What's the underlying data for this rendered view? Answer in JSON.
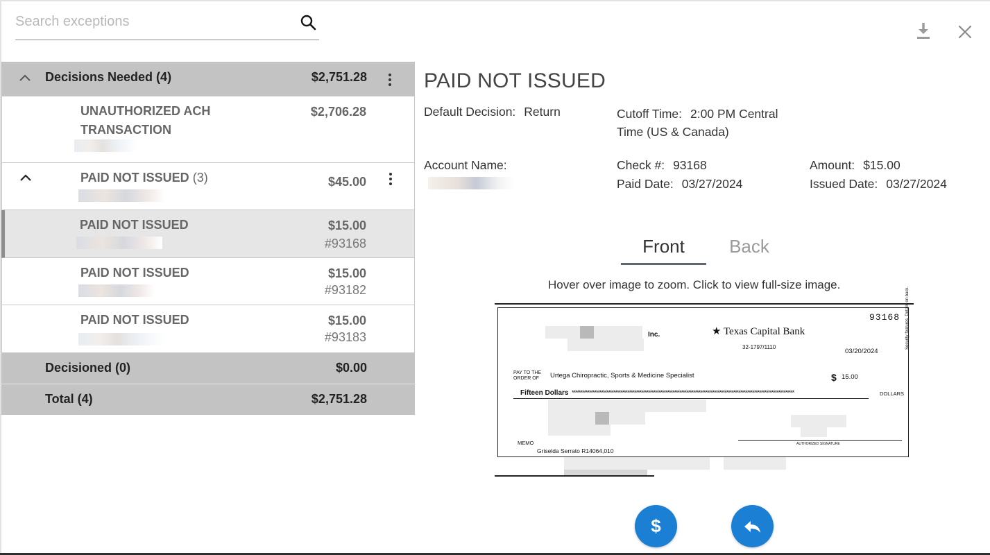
{
  "search": {
    "placeholder": "Search exceptions"
  },
  "icons": {
    "search": "search-icon",
    "download": "download-icon",
    "close": "close-icon",
    "chevron": "chevron-up-icon",
    "menu": "more-vertical-icon",
    "pay": "dollar-icon",
    "return": "reply-icon"
  },
  "list": {
    "decisions_needed": {
      "label": "Decisions Needed (4)",
      "amount": "$2,751.28"
    },
    "unauthorized_ach": {
      "label": "UNAUTHORIZED ACH TRANSACTION",
      "amount": "$2,706.28"
    },
    "paid_not_issued_group": {
      "label": "PAID NOT ISSUED",
      "count": "(3)",
      "amount": "$45.00"
    },
    "items": [
      {
        "label": "PAID NOT ISSUED",
        "amount": "$15.00",
        "check": "#93168",
        "selected": true
      },
      {
        "label": "PAID NOT ISSUED",
        "amount": "$15.00",
        "check": "#93182",
        "selected": false
      },
      {
        "label": "PAID NOT ISSUED",
        "amount": "$15.00",
        "check": "#93183",
        "selected": false
      }
    ],
    "decisioned": {
      "label": "Decisioned (0)",
      "amount": "$0.00"
    },
    "total": {
      "label": "Total (4)",
      "amount": "$2,751.28"
    }
  },
  "detail": {
    "title": "PAID NOT ISSUED",
    "default_decision_label": "Default Decision:",
    "default_decision_value": "Return",
    "cutoff_label": "Cutoff Time:",
    "cutoff_value_line1": "2:00 PM Central",
    "cutoff_value_line2": "Time (US & Canada)",
    "account_name_label": "Account Name:",
    "check_num_label": "Check #:",
    "check_num_value": "93168",
    "amount_label": "Amount:",
    "amount_value": "$15.00",
    "paid_date_label": "Paid Date:",
    "paid_date_value": "03/27/2024",
    "issued_date_label": "Issued Date:",
    "issued_date_value": "03/27/2024"
  },
  "image_tabs": {
    "front": "Front",
    "back": "Back",
    "active": "front"
  },
  "hint": "Hover over image to zoom. Click to view full-size image.",
  "check_image": {
    "number": "93168",
    "company_suffix": "Inc.",
    "bank": "Texas Capital Bank",
    "routing": "32-1797/1110",
    "date": "03/20/2024",
    "pay_to_label": "PAY TO THE ORDER OF",
    "payee": "Urtega Chiropractic, Sports & Medicine Specialist",
    "dollar_sign": "$",
    "amount": "15.00",
    "amount_words": "Fifteen Dollars",
    "dollars_label": "DOLLARS",
    "memo_label": "MEMO",
    "memo": "Griselda Serrato R14064,010",
    "signature_label": "AUTHORIZED SIGNATURE",
    "side_text": "Security features. Details on back."
  },
  "actions": {
    "pay_symbol": "$",
    "return_symbol": "↩"
  },
  "colors": {
    "accent": "#1b7fd4",
    "group_bg": "#c3c3c3",
    "selected_bg": "#e6e6e6"
  }
}
